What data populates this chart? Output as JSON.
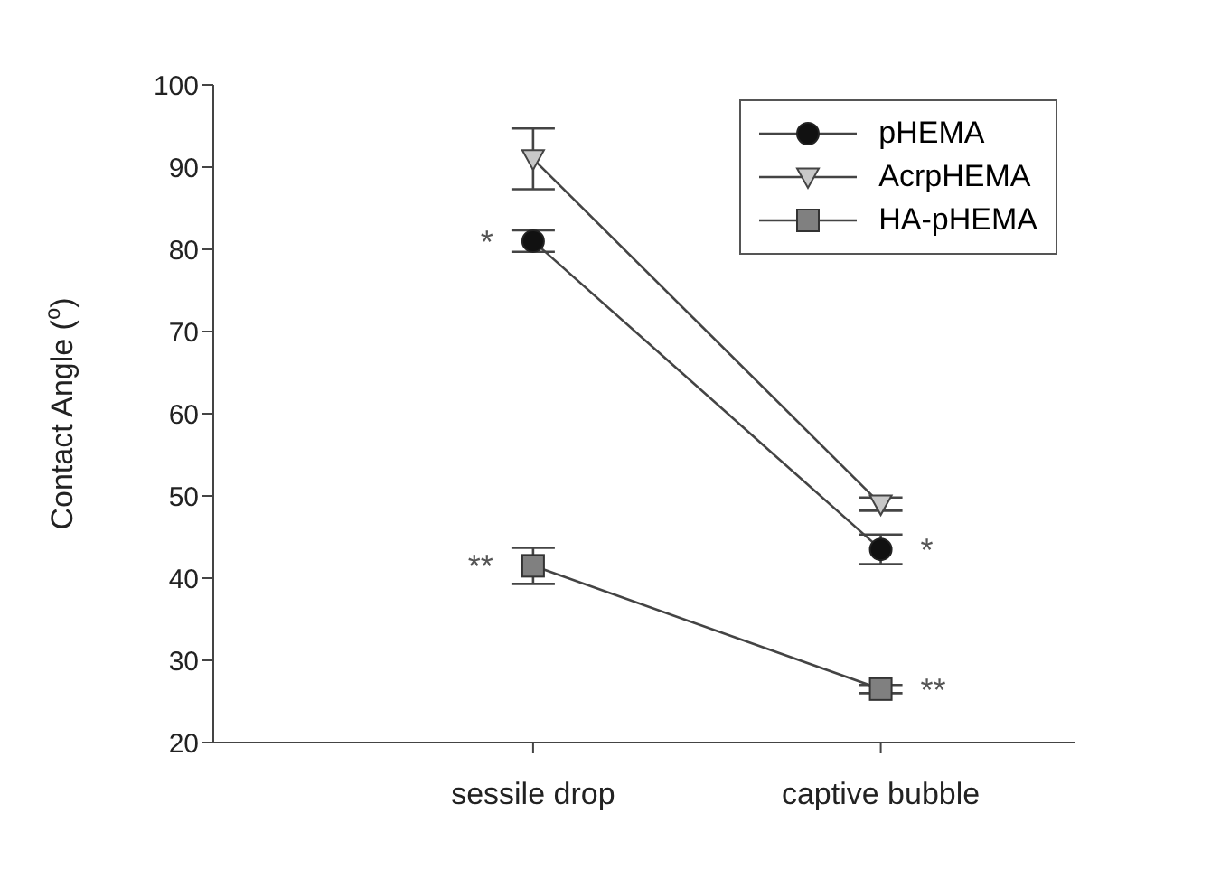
{
  "chart_data": {
    "type": "line",
    "ylabel": "Contact Angle ($^{o}$)",
    "categories": [
      "sessile drop",
      "captive bubble"
    ],
    "series": [
      {
        "name": "pHEMA",
        "color": "#111111",
        "marker": "circle",
        "values": [
          81,
          43.5
        ],
        "errors": [
          1.3,
          1.8
        ]
      },
      {
        "name": "AcrpHEMA",
        "color": "#c8c8c8",
        "marker": "triangle",
        "values": [
          91,
          49
        ],
        "errors": [
          3.7,
          0.8
        ]
      },
      {
        "name": "HA-pHEMA",
        "color": "#808080",
        "marker": "square",
        "values": [
          41.5,
          26.5
        ],
        "errors": [
          2.2,
          0.5
        ]
      }
    ],
    "ylim": [
      20,
      100
    ],
    "yticks": [
      20,
      30,
      40,
      50,
      60,
      70,
      80,
      90,
      100
    ],
    "grid": false,
    "legend": "top right",
    "annotations": [
      {
        "text": "*",
        "x": "sessile drop",
        "y": 81
      },
      {
        "text": "**",
        "x": "sessile drop",
        "y": 41.5
      },
      {
        "text": "*",
        "x": "captive bubble",
        "y": 43.5
      },
      {
        "text": "**",
        "x": "captive bubble",
        "y": 26.5
      }
    ]
  }
}
